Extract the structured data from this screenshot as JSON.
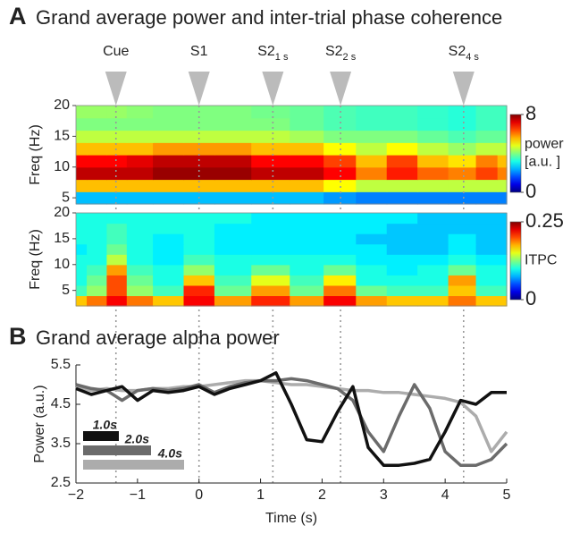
{
  "chart_data": [
    {
      "type": "heatmap",
      "panel": "A",
      "title": "Grand average power and inter-trial phase coherence",
      "y_label": "Freq (Hz)",
      "colorbar_label": [
        "power",
        "[a.u. ]"
      ],
      "events": [
        {
          "label": "Cue",
          "x": -1.35
        },
        {
          "label": "S1",
          "x": 0
        },
        {
          "label": "S2",
          "subscript": "1 s",
          "x": 1.2
        },
        {
          "label": "S2",
          "subscript": "2 s",
          "x": 2.3
        },
        {
          "label": "S2",
          "subscript": "4 s",
          "x": 4.3
        }
      ],
      "xlim": [
        -2,
        5
      ],
      "ylim": [
        4,
        20
      ],
      "yticks": [
        5,
        10,
        15,
        20
      ],
      "zlim": [
        0,
        8
      ],
      "zticks": [
        0,
        8
      ],
      "x": [
        -2,
        -1.65,
        -1.35,
        -1,
        -0.5,
        0,
        0.5,
        1.2,
        1.75,
        2.3,
        2.8,
        3.3,
        3.8,
        4.3,
        4.7,
        5
      ],
      "y": [
        5,
        7,
        9,
        11,
        13,
        15,
        17,
        19
      ],
      "z": [
        [
          2.5,
          2.5,
          2.5,
          2.5,
          2.5,
          2.5,
          2.5,
          2.5,
          2.5,
          2.2,
          2,
          2,
          2,
          2,
          2,
          2
        ],
        [
          5.5,
          5.5,
          5.5,
          5.5,
          5.5,
          5.5,
          5.5,
          5.5,
          5.5,
          5,
          4.5,
          4.5,
          4.5,
          4.5,
          4.5,
          4.5
        ],
        [
          7.5,
          7.5,
          7.5,
          7.5,
          7.8,
          7.8,
          7.8,
          7.5,
          7.5,
          7,
          6,
          6.8,
          6.2,
          6,
          6.5,
          6
        ],
        [
          7,
          7,
          7,
          7.2,
          7.5,
          7.5,
          7.5,
          7,
          7,
          6.5,
          5.5,
          6.5,
          5.5,
          5.2,
          6,
          5.5
        ],
        [
          5.5,
          5.5,
          5.5,
          5.5,
          5.8,
          5.8,
          5.8,
          5.5,
          5.5,
          5,
          4.5,
          5,
          4.5,
          4.2,
          4.5,
          4.5
        ],
        [
          4.5,
          4.5,
          4.5,
          4.5,
          4.5,
          4.5,
          4.5,
          4.5,
          4.3,
          4,
          4,
          4,
          3.8,
          3.6,
          3.8,
          3.8
        ],
        [
          4,
          4,
          4,
          4,
          4,
          4,
          4,
          4,
          3.8,
          3.6,
          3.5,
          3.5,
          3.4,
          3.3,
          3.5,
          3.5
        ],
        [
          4.2,
          4.2,
          4.2,
          4.1,
          4,
          4,
          4,
          3.9,
          3.8,
          3.6,
          3.5,
          3.5,
          3.4,
          3.3,
          3.5,
          3.5
        ]
      ]
    },
    {
      "type": "heatmap",
      "y_label": "Freq (Hz)",
      "colorbar_label": [
        "ITPC"
      ],
      "xlim": [
        -2,
        5
      ],
      "ylim": [
        2,
        20
      ],
      "yticks": [
        5,
        10,
        15,
        20
      ],
      "zlim": [
        0,
        0.25
      ],
      "zticks": [
        0,
        0.25
      ],
      "x": [
        -2,
        -1.65,
        -1.35,
        -1,
        -0.5,
        0,
        0.5,
        1.2,
        1.75,
        2.3,
        2.8,
        3.3,
        3.8,
        4.3,
        4.7,
        5
      ],
      "y": [
        3,
        5,
        7,
        9,
        11,
        13,
        15,
        17,
        19
      ],
      "z": [
        [
          0.17,
          0.19,
          0.22,
          0.19,
          0.17,
          0.22,
          0.18,
          0.21,
          0.18,
          0.22,
          0.18,
          0.17,
          0.17,
          0.19,
          0.17,
          0.17
        ],
        [
          0.11,
          0.13,
          0.2,
          0.13,
          0.11,
          0.21,
          0.12,
          0.18,
          0.12,
          0.19,
          0.12,
          0.11,
          0.11,
          0.17,
          0.11,
          0.11
        ],
        [
          0.1,
          0.12,
          0.2,
          0.12,
          0.1,
          0.17,
          0.11,
          0.15,
          0.11,
          0.16,
          0.1,
          0.1,
          0.1,
          0.18,
          0.1,
          0.1
        ],
        [
          0.1,
          0.11,
          0.18,
          0.11,
          0.1,
          0.13,
          0.1,
          0.12,
          0.1,
          0.12,
          0.1,
          0.09,
          0.1,
          0.12,
          0.1,
          0.1
        ],
        [
          0.1,
          0.1,
          0.14,
          0.1,
          0.09,
          0.11,
          0.1,
          0.1,
          0.1,
          0.1,
          0.09,
          0.09,
          0.09,
          0.1,
          0.09,
          0.09
        ],
        [
          0.09,
          0.1,
          0.12,
          0.1,
          0.09,
          0.1,
          0.09,
          0.09,
          0.09,
          0.09,
          0.09,
          0.08,
          0.08,
          0.09,
          0.08,
          0.08
        ],
        [
          0.1,
          0.1,
          0.11,
          0.1,
          0.09,
          0.1,
          0.09,
          0.09,
          0.09,
          0.09,
          0.08,
          0.08,
          0.08,
          0.09,
          0.08,
          0.08
        ],
        [
          0.1,
          0.1,
          0.11,
          0.1,
          0.1,
          0.1,
          0.09,
          0.09,
          0.09,
          0.09,
          0.09,
          0.08,
          0.08,
          0.08,
          0.08,
          0.08
        ],
        [
          0.1,
          0.1,
          0.1,
          0.1,
          0.1,
          0.1,
          0.1,
          0.09,
          0.09,
          0.09,
          0.09,
          0.09,
          0.08,
          0.08,
          0.08,
          0.08
        ]
      ]
    },
    {
      "type": "line",
      "panel": "B",
      "title": "Grand average alpha power",
      "x_label": "Time (s)",
      "y_label": "Power (a.u.)",
      "xlim": [
        -2,
        5
      ],
      "ylim": [
        2.5,
        5.5
      ],
      "xticks": [
        {
          "value": -2,
          "label": "−2"
        },
        {
          "value": -1,
          "label": "−1"
        },
        0,
        1,
        2,
        3,
        4,
        5
      ],
      "yticks": [
        2.5,
        3.5,
        4.5,
        5.5
      ],
      "x": [
        -2,
        -1.75,
        -1.5,
        -1.25,
        -1,
        -0.75,
        -0.5,
        -0.25,
        0,
        0.25,
        0.5,
        0.75,
        1,
        1.25,
        1.5,
        1.75,
        2,
        2.25,
        2.5,
        2.75,
        3,
        3.25,
        3.5,
        3.75,
        4,
        4.25,
        4.5,
        4.75,
        5
      ],
      "series": [
        {
          "name": "1.0s",
          "color": "#111111",
          "values": [
            4.9,
            4.75,
            4.85,
            4.95,
            4.6,
            4.85,
            4.8,
            4.85,
            4.95,
            4.75,
            4.9,
            5.0,
            5.1,
            5.3,
            4.5,
            3.6,
            3.55,
            4.3,
            4.95,
            3.4,
            2.95,
            2.95,
            3.0,
            3.1,
            3.8,
            4.6,
            4.5,
            4.8,
            4.8
          ]
        },
        {
          "name": "2.0s",
          "color": "#6b6b6b",
          "values": [
            5.0,
            4.9,
            4.85,
            4.6,
            4.85,
            4.9,
            4.85,
            4.9,
            5.0,
            4.8,
            4.95,
            5.05,
            5.1,
            5.1,
            5.15,
            5.1,
            5.0,
            4.9,
            4.6,
            3.8,
            3.3,
            4.2,
            5.0,
            4.4,
            3.3,
            2.95,
            2.95,
            3.1,
            3.5
          ]
        },
        {
          "name": "4.0s",
          "color": "#acacac",
          "values": [
            4.95,
            4.85,
            4.9,
            4.85,
            4.85,
            4.9,
            4.9,
            4.95,
            4.95,
            5.0,
            5.05,
            5.1,
            5.1,
            5.05,
            5.0,
            5.0,
            4.95,
            4.9,
            4.85,
            4.85,
            4.8,
            4.8,
            4.75,
            4.7,
            4.65,
            4.55,
            4.2,
            3.3,
            3.8
          ]
        }
      ]
    }
  ]
}
